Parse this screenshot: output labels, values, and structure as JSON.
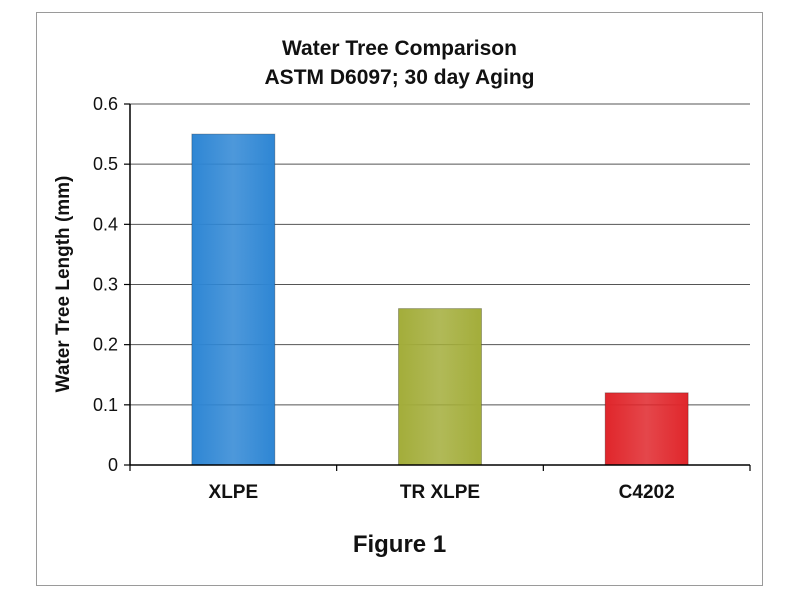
{
  "chart_data": {
    "type": "bar",
    "title": "Water Tree Comparison",
    "subtitle": "ASTM D6097; 30 day Aging",
    "xlabel": "",
    "ylabel": "Water Tree Length (mm)",
    "categories": [
      "XLPE",
      "TR XLPE",
      "C4202"
    ],
    "values": [
      0.55,
      0.26,
      0.12
    ],
    "ylim": [
      0,
      0.6
    ],
    "yticks": [
      "0",
      "0.1",
      "0.2",
      "0.3",
      "0.4",
      "0.5",
      "0.6"
    ],
    "grid": true,
    "legend": "none",
    "colors": [
      "#2e86d4",
      "#a3ad3a",
      "#e0262b"
    ]
  },
  "caption": "Figure 1"
}
